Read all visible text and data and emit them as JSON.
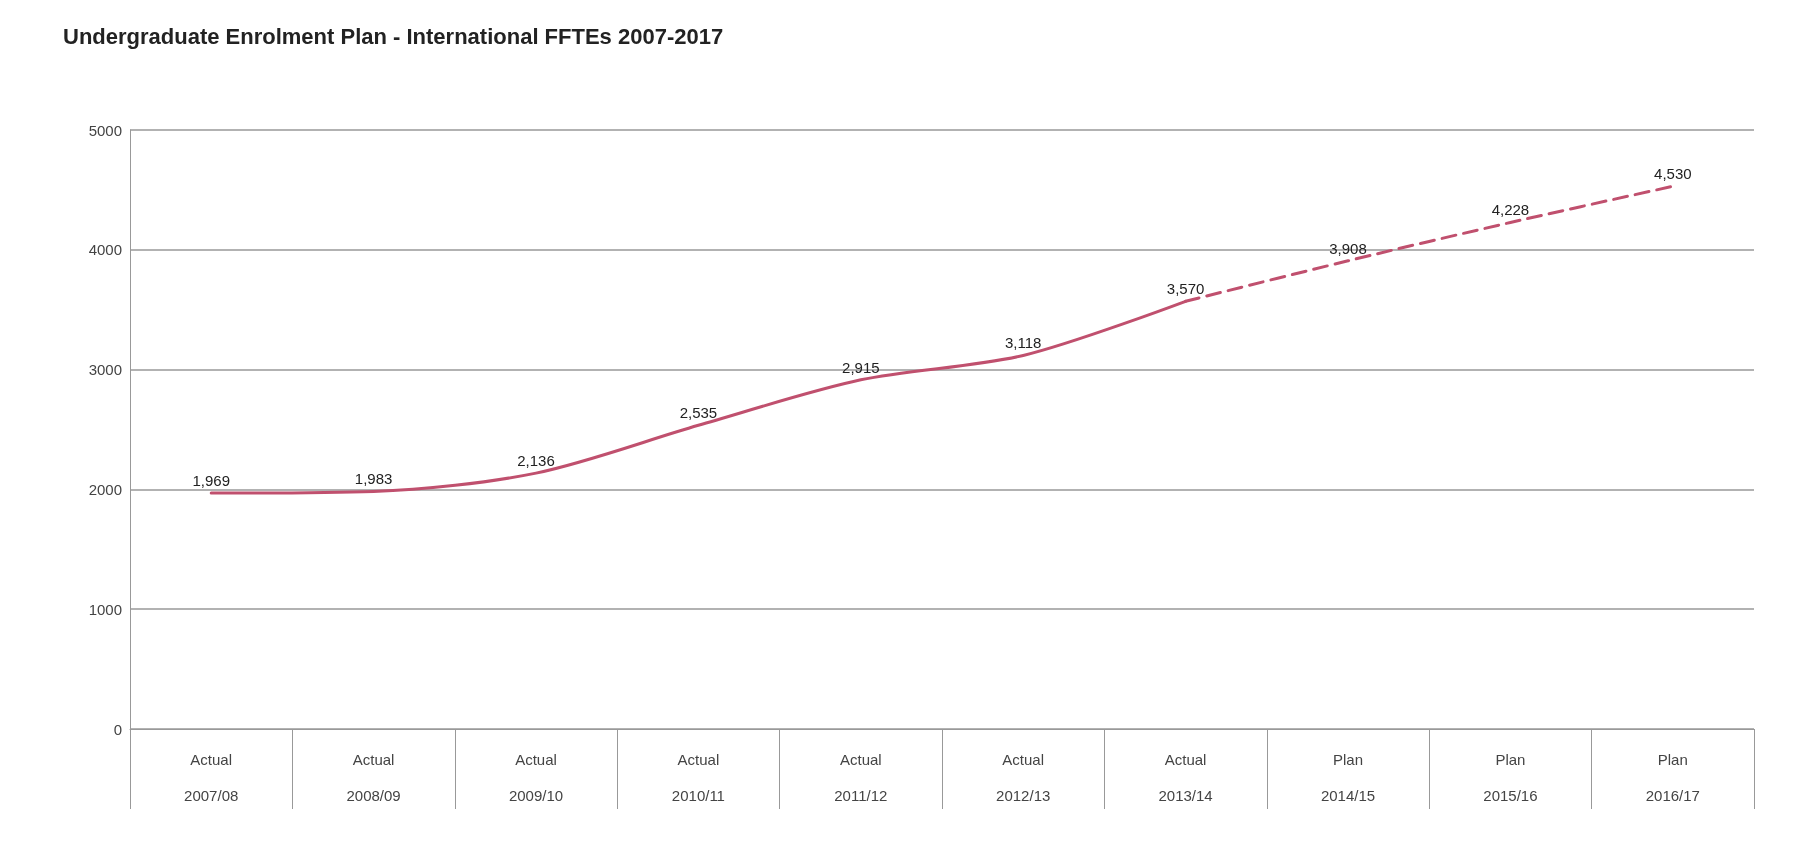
{
  "chart_data": {
    "type": "line",
    "title": "Undergraduate Enrolment Plan - International FFTEs 2007-2017",
    "categories": [
      "Actual\n2007/08",
      "Actual\n2008/09",
      "Actual\n2009/10",
      "Actual\n2010/11",
      "Actual\n2011/12",
      "Actual\n2012/13",
      "Actual\n2013/14",
      "Plan\n2014/15",
      "Plan\n2015/16",
      "Plan\n2016/17"
    ],
    "series": [
      {
        "color": "#c0506e",
        "line_style": "solid",
        "values": [
          1969,
          1983,
          2136,
          2535,
          2915,
          3118,
          3570,
          null,
          null,
          null
        ],
        "value_labels": [
          "1,969",
          "1,983",
          "2,136",
          "2,535",
          "2,915",
          "3,118",
          "3,570",
          null,
          null,
          null
        ]
      },
      {
        "color": "#c0506e",
        "line_style": "dashed",
        "values": [
          null,
          null,
          null,
          null,
          null,
          null,
          3570,
          3908,
          4228,
          4530
        ],
        "value_labels": [
          null,
          null,
          null,
          null,
          null,
          null,
          null,
          "3,908",
          "4,228",
          "4,530"
        ]
      }
    ],
    "ylim": [
      0,
      5000
    ],
    "yticks": [
      0,
      1000,
      2000,
      3000,
      4000,
      5000
    ],
    "grid": "y",
    "marker": "none"
  }
}
